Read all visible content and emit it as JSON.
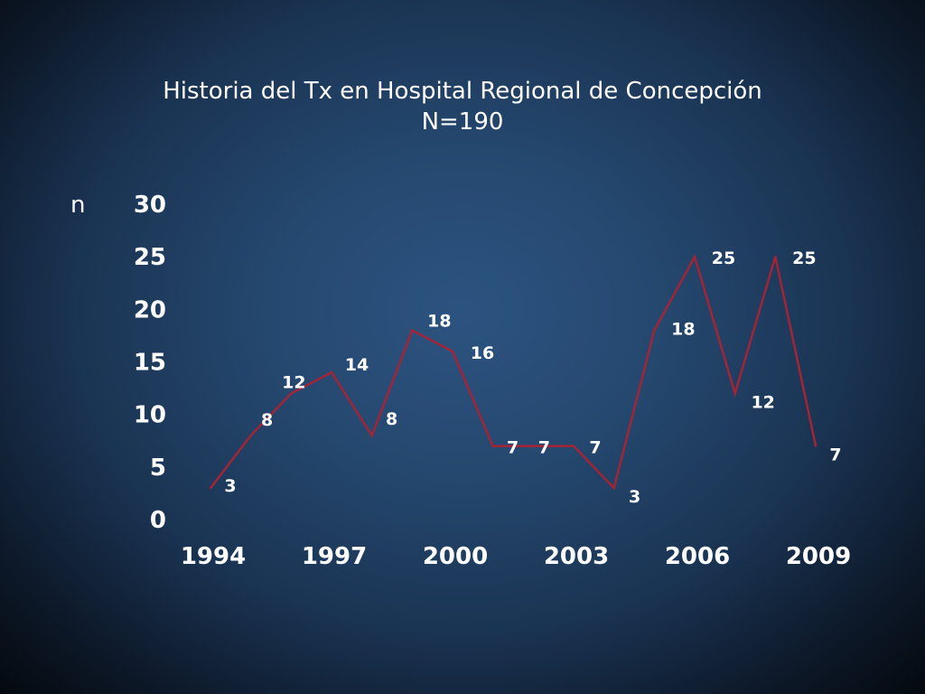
{
  "title": {
    "line1": "Historia del Tx en Hospital Regional de Concepción",
    "line2": "N=190"
  },
  "chart_data": {
    "type": "line",
    "title": "Historia del Tx en Hospital Regional de Concepción",
    "subtitle": "N=190",
    "ylabel": "n",
    "xlabel": "",
    "x": [
      1994,
      1995,
      1996,
      1997,
      1998,
      1999,
      2000,
      2001,
      2002,
      2003,
      2004,
      2005,
      2006,
      2007,
      2008,
      2009
    ],
    "x_tick_labels": [
      "1994",
      "1997",
      "2000",
      "2003",
      "2006",
      "2009"
    ],
    "y_tick_labels": [
      "0",
      "5",
      "10",
      "15",
      "20",
      "25",
      "30"
    ],
    "ylim": [
      0,
      30
    ],
    "series": [
      {
        "values": [
          3,
          8,
          12,
          14,
          8,
          18,
          16,
          7,
          7,
          7,
          3,
          18,
          25,
          12,
          25,
          7
        ],
        "color": "#a32437"
      }
    ],
    "data_labels": [
      "3",
      "8",
      "12",
      "14",
      "8",
      "18",
      "16",
      "7",
      "7",
      "7",
      "3",
      "18",
      "25",
      "12",
      "25",
      "7"
    ],
    "grid": false,
    "legend": "none"
  }
}
